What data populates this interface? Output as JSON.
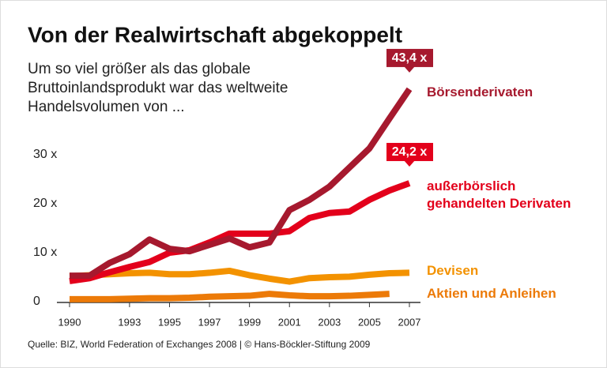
{
  "chart_data": {
    "type": "line",
    "title": "Von der Realwirtschaft abgekoppelt",
    "subtitle": [
      "Um so viel größer als das globale",
      "Bruttoinlandsprodukt war das weltweite",
      "Handelsvolumen von ..."
    ],
    "source": "Quelle: BIZ, World Federation of Exchanges 2008 | © Hans-Böckler-Stiftung 2009",
    "x": [
      1990,
      1991,
      1992,
      1993,
      1994,
      1995,
      1996,
      1997,
      1998,
      1999,
      2000,
      2001,
      2002,
      2003,
      2004,
      2005,
      2006,
      2007
    ],
    "xlim": [
      1990,
      2007
    ],
    "xticks": [
      1990,
      1993,
      1995,
      1997,
      1999,
      2001,
      2003,
      2005,
      2007
    ],
    "ylim": [
      0,
      45
    ],
    "yticks": [
      0,
      {
        "value": 10,
        "label": "10 x"
      },
      {
        "value": 20,
        "label": "20 x"
      },
      {
        "value": 30,
        "label": "30 x"
      }
    ],
    "series": [
      {
        "name": "Börsenderivaten",
        "color": "#a6192e",
        "values": [
          5.3,
          5.3,
          7.9,
          9.7,
          12.7,
          10.8,
          10.3,
          11.6,
          12.9,
          11.1,
          12.1,
          18.7,
          20.8,
          23.5,
          27.4,
          31.3,
          37.4,
          43.4
        ],
        "value_labels": [
          null,
          null,
          null,
          null,
          null,
          null,
          null,
          null,
          null,
          null,
          null,
          null,
          null,
          null,
          null,
          null,
          null,
          "43,4 x"
        ]
      },
      {
        "name": "außerbörslich gehandelten Derivaten",
        "color": "#e3001b",
        "values": [
          4.2,
          4.8,
          6.0,
          7.1,
          8.1,
          10.0,
          10.5,
          12.1,
          13.9,
          13.9,
          13.9,
          14.4,
          17.1,
          18.1,
          18.4,
          20.8,
          22.7,
          24.2
        ],
        "value_labels": [
          null,
          null,
          null,
          null,
          null,
          null,
          null,
          null,
          null,
          null,
          null,
          null,
          null,
          null,
          null,
          null,
          null,
          "24,2 x"
        ]
      },
      {
        "name": "Devisen",
        "color": "#f39200",
        "values": [
          5.2,
          5.4,
          5.6,
          5.8,
          5.9,
          5.6,
          5.6,
          5.9,
          6.3,
          5.4,
          4.7,
          4.1,
          4.8,
          5.0,
          5.1,
          5.5,
          5.8,
          5.9
        ]
      },
      {
        "name": "Aktien und Anleihen",
        "color": "#ec7a08",
        "values": [
          0.5,
          0.5,
          0.5,
          0.6,
          0.7,
          0.7,
          0.8,
          1.0,
          1.1,
          1.2,
          1.6,
          1.3,
          1.1,
          1.1,
          1.2,
          1.4,
          1.6,
          null
        ]
      }
    ]
  }
}
